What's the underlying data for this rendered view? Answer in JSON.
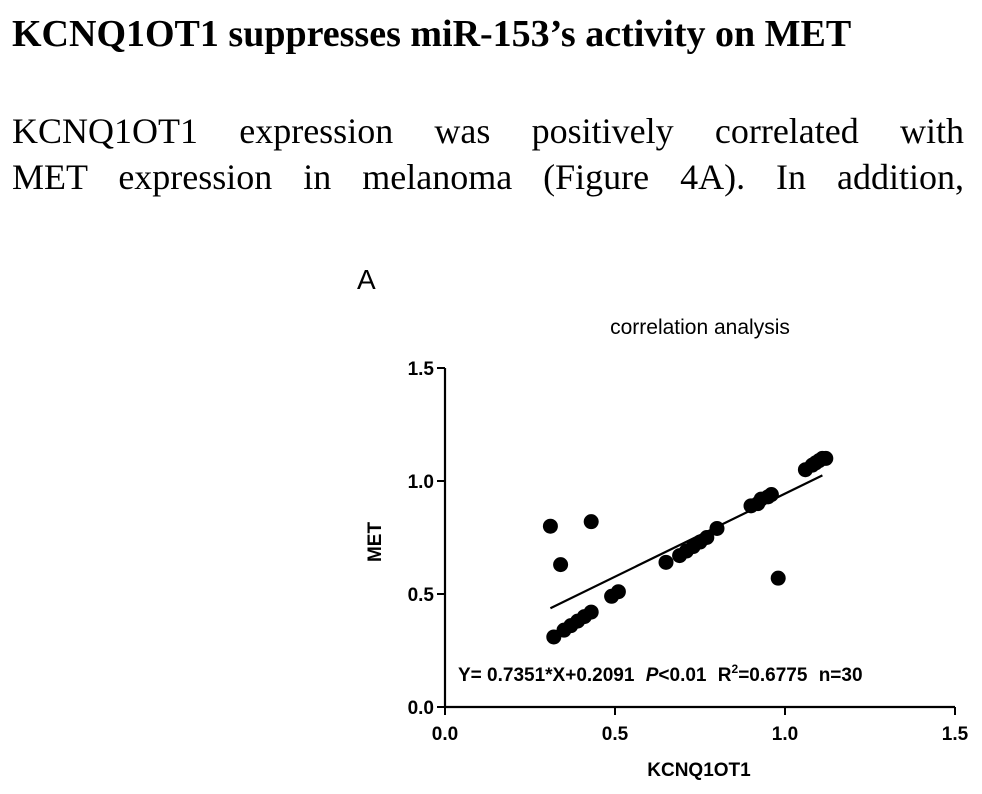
{
  "section": {
    "heading": "KCNQ1OT1 suppresses miR-153’s activity on MET"
  },
  "paragraph": {
    "lines": [
      "KCNQ1OT1 expression was positively correlated with",
      "MET expression in melanoma (Figure 4A).  In  addition,"
    ]
  },
  "figure": {
    "panel_label": "A"
  },
  "chart_data": {
    "type": "scatter",
    "title": "correlation analysis",
    "xlabel": "KCNQ1OT1",
    "ylabel": "MET",
    "xlim": [
      0.0,
      1.5
    ],
    "ylim": [
      0.0,
      1.5
    ],
    "x_ticks": [
      "0.0",
      "0.5",
      "1.0",
      "1.5"
    ],
    "y_ticks": [
      "0.0",
      "0.5",
      "1.0",
      "1.5"
    ],
    "grid": false,
    "points": [
      {
        "x": 0.31,
        "y": 0.8
      },
      {
        "x": 0.34,
        "y": 0.63
      },
      {
        "x": 0.43,
        "y": 0.82
      },
      {
        "x": 0.32,
        "y": 0.31
      },
      {
        "x": 0.35,
        "y": 0.34
      },
      {
        "x": 0.37,
        "y": 0.36
      },
      {
        "x": 0.39,
        "y": 0.38
      },
      {
        "x": 0.41,
        "y": 0.4
      },
      {
        "x": 0.43,
        "y": 0.42
      },
      {
        "x": 0.49,
        "y": 0.49
      },
      {
        "x": 0.51,
        "y": 0.51
      },
      {
        "x": 0.65,
        "y": 0.64
      },
      {
        "x": 0.69,
        "y": 0.67
      },
      {
        "x": 0.71,
        "y": 0.69
      },
      {
        "x": 0.73,
        "y": 0.71
      },
      {
        "x": 0.75,
        "y": 0.73
      },
      {
        "x": 0.77,
        "y": 0.75
      },
      {
        "x": 0.8,
        "y": 0.79
      },
      {
        "x": 0.9,
        "y": 0.89
      },
      {
        "x": 0.92,
        "y": 0.9
      },
      {
        "x": 0.93,
        "y": 0.92
      },
      {
        "x": 0.95,
        "y": 0.93
      },
      {
        "x": 0.96,
        "y": 0.94
      },
      {
        "x": 0.98,
        "y": 0.57
      },
      {
        "x": 1.06,
        "y": 1.05
      },
      {
        "x": 1.08,
        "y": 1.07
      },
      {
        "x": 1.09,
        "y": 1.08
      },
      {
        "x": 1.1,
        "y": 1.09
      },
      {
        "x": 1.11,
        "y": 1.1
      },
      {
        "x": 1.12,
        "y": 1.1
      }
    ],
    "regression": {
      "slope": 0.7351,
      "intercept": 0.2091,
      "x_from": 0.31,
      "x_to": 1.11
    },
    "annotation": {
      "equation": "Y= 0.7351*X+0.2091",
      "p_symbol": "P",
      "p_value": "<0.01",
      "r2_label": "R",
      "r2_sup": "2",
      "r2_value": "=0.6775",
      "n": "n=30"
    }
  }
}
